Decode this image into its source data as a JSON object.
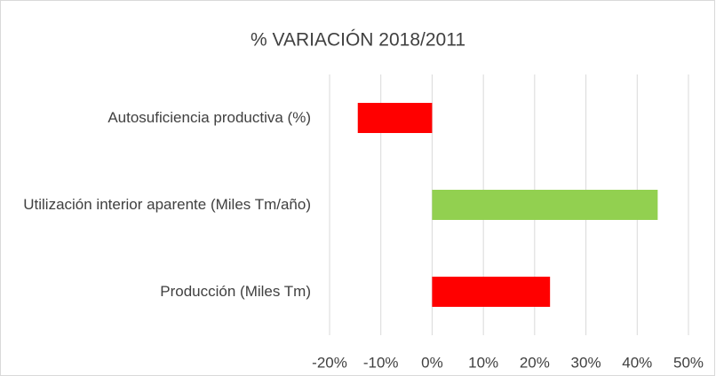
{
  "chart_data": {
    "type": "hbar",
    "title": "% VARIACIÓN 2018/2011",
    "categories": [
      "Autosuficiencia productiva (%)",
      "Utilización interior aparente (Miles Tm/año)",
      "Producción (Miles Tm)"
    ],
    "values": [
      -14.5,
      44,
      23
    ],
    "colors": [
      "#ff0000",
      "#92d050",
      "#ff0000"
    ],
    "xlim": [
      -20,
      50
    ],
    "xticks": [
      {
        "value": -20,
        "label": "-20%"
      },
      {
        "value": -10,
        "label": "-10%"
      },
      {
        "value": 0,
        "label": "0%"
      },
      {
        "value": 10,
        "label": "10%"
      },
      {
        "value": 20,
        "label": "20%"
      },
      {
        "value": 30,
        "label": "30%"
      },
      {
        "value": 40,
        "label": "40%"
      },
      {
        "value": 50,
        "label": "50%"
      }
    ],
    "grid": true
  }
}
